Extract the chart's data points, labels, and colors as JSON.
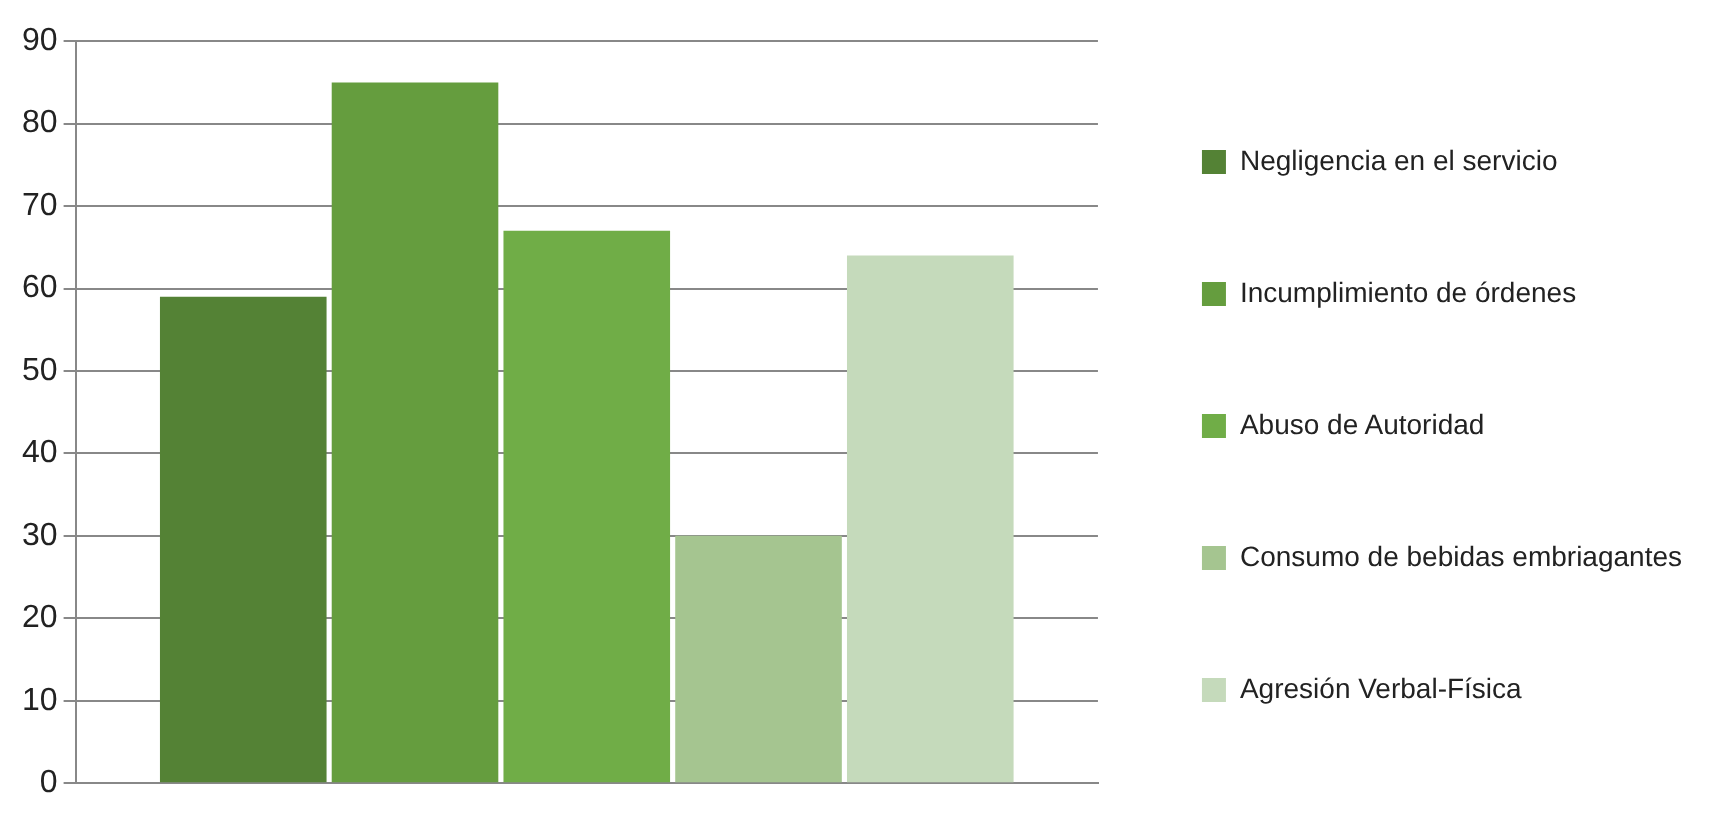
{
  "chart_data": {
    "type": "bar",
    "categories": [
      null
    ],
    "series": [
      {
        "name": "Negligencia en el servicio",
        "color": "#548235",
        "values": [
          59
        ]
      },
      {
        "name": "Incumplimiento de órdenes",
        "color": "#659d3e",
        "values": [
          85
        ]
      },
      {
        "name": "Abuso de Autoridad",
        "color": "#70ad47",
        "values": [
          67
        ]
      },
      {
        "name": "Consumo de bebidas embriagantes",
        "color": "#a5c590",
        "values": [
          30
        ]
      },
      {
        "name": "Agresión Verbal-Física",
        "color": "#c5dabb",
        "values": [
          64
        ]
      }
    ],
    "ylim": [
      0,
      90
    ],
    "yticks": [
      0,
      10,
      20,
      30,
      40,
      50,
      60,
      70,
      80,
      90
    ],
    "grid": "y",
    "legend": "right"
  }
}
